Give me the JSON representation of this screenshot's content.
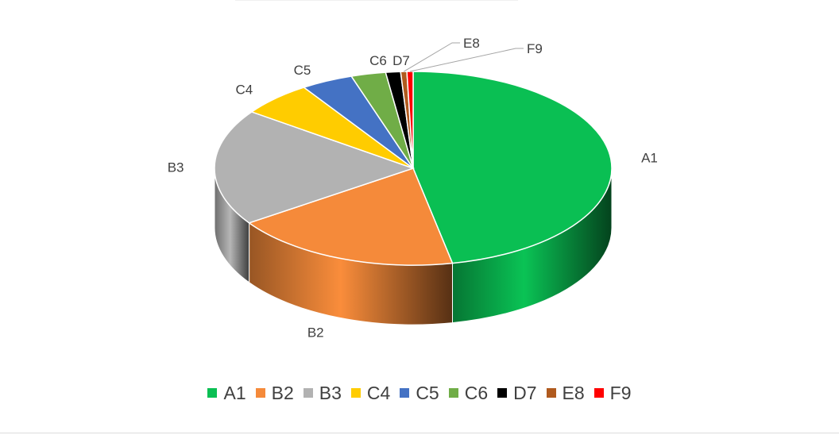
{
  "chart_data": {
    "type": "pie",
    "style": "3d",
    "title": "",
    "categories": [
      "A1",
      "B2",
      "B3",
      "C4",
      "C5",
      "C6",
      "D7",
      "E8",
      "F9"
    ],
    "values": [
      46.5,
      18.5,
      19.3,
      5.8,
      4.2,
      2.8,
      1.2,
      0.5,
      0.5
    ],
    "colors": [
      "#0ABF53",
      "#F58A3A",
      "#B2B2B2",
      "#FFCC00",
      "#4472C4",
      "#70AD47",
      "#000000",
      "#B05A1E",
      "#FF0000"
    ],
    "legend_position": "bottom",
    "data_labels": "category-name"
  }
}
